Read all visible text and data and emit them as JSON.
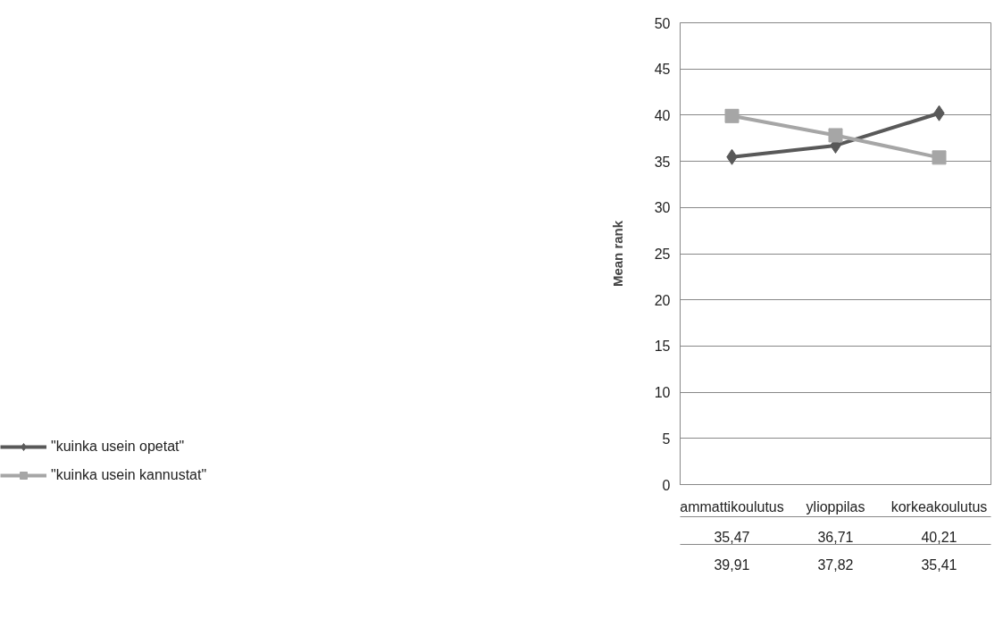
{
  "chart_data": {
    "type": "line",
    "ylabel": "Mean rank",
    "categories": [
      "ammattikoulutus",
      "ylioppilas",
      "korkeakoulutus"
    ],
    "ylim": [
      0,
      50
    ],
    "yticks": [
      0,
      5,
      10,
      15,
      20,
      25,
      30,
      35,
      40,
      45,
      50
    ],
    "grid": "y",
    "legend": "bottom",
    "line_style": "solid",
    "series": [
      {
        "name": "\"kuinka usein opetat\"",
        "color": "#595959",
        "marker": "diamond",
        "values": [
          35.47,
          36.71,
          40.21
        ],
        "value_labels": [
          "35,47",
          "36,71",
          "40,21"
        ]
      },
      {
        "name": "\"kuinka usein kannustat\"",
        "color": "#a6a6a6",
        "marker": "square",
        "values": [
          39.91,
          37.82,
          35.41
        ],
        "value_labels": [
          "39,91",
          "37,82",
          "35,41"
        ]
      }
    ]
  }
}
